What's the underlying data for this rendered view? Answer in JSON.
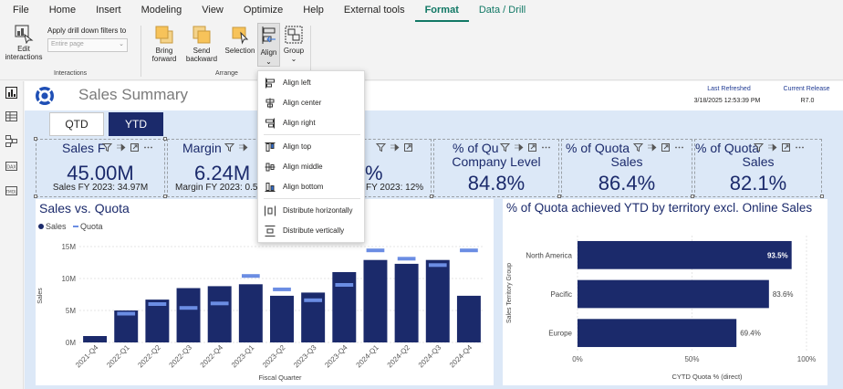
{
  "menu": {
    "items": [
      {
        "label": "File"
      },
      {
        "label": "Home"
      },
      {
        "label": "Insert"
      },
      {
        "label": "Modeling"
      },
      {
        "label": "View"
      },
      {
        "label": "Optimize"
      },
      {
        "label": "Help"
      },
      {
        "label": "External tools"
      },
      {
        "label": "Format"
      },
      {
        "label": "Data / Drill"
      }
    ],
    "active": "Format",
    "accent_color": "#117865"
  },
  "ribbon": {
    "edit_interactions": {
      "line1": "Edit",
      "line2": "interactions"
    },
    "drill_filters_label": "Apply drill down filters to",
    "drill_filters_placeholder": "Entire page",
    "interactions_group": "Interactions",
    "bring_forward": {
      "line1": "Bring",
      "line2": "forward"
    },
    "send_backward": {
      "line1": "Send",
      "line2": "backward"
    },
    "selection": "Selection",
    "align": "Align",
    "group": "Group",
    "arrange_group": "Arrange"
  },
  "align_menu": {
    "items": [
      {
        "label": "Align left",
        "icon": "align-left-icon"
      },
      {
        "label": "Align center",
        "icon": "align-center-icon"
      },
      {
        "label": "Align right",
        "icon": "align-right-icon"
      },
      {
        "label": "Align top",
        "icon": "align-top-icon"
      },
      {
        "label": "Align middle",
        "icon": "align-middle-icon"
      },
      {
        "label": "Align bottom",
        "icon": "align-bottom-icon"
      },
      {
        "label": "Distribute horizontally",
        "icon": "distribute-horizontal-icon"
      },
      {
        "label": "Distribute vertically",
        "icon": "distribute-vertical-icon"
      }
    ]
  },
  "rail": {
    "icons": [
      "report-view-icon",
      "table-view-icon",
      "model-view-icon",
      "dax-query-icon",
      "tmdl-view-icon"
    ]
  },
  "report": {
    "title": "Sales Summary",
    "last_refreshed_label": "Last Refreshed",
    "last_refreshed_value": "3/18/2025 12:53:39 PM",
    "current_release_label": "Current Release",
    "current_release_value": "R7.0",
    "toggle": {
      "qtd": "QTD",
      "ytd": "YTD",
      "selected": "YTD"
    },
    "navy": "#1b2a6b",
    "light_bar": "#6b8de3"
  },
  "cards": [
    {
      "title": "Sales F",
      "value": "45.00M",
      "sub": "Sales FY 2023: 34.97M"
    },
    {
      "title": "Margin",
      "value": "6.24M",
      "sub": "Margin FY 2023: 0.5"
    },
    {
      "title": "",
      "value": "%",
      "sub": "FY 2023: 12%"
    },
    {
      "title": "% of Qu",
      "title2": "Company Level",
      "value": "84.8%"
    },
    {
      "title": "% of Quota",
      "title2": "Sales",
      "value": "86.4%"
    },
    {
      "title": "% of Quota",
      "title2": "Sales",
      "value": "82.1%"
    }
  ],
  "chart_data": [
    {
      "type": "bar",
      "title": "Sales vs. Quota",
      "xlabel": "Fiscal Quarter",
      "ylabel": "Sales",
      "categories": [
        "2021-Q4",
        "2022-Q1",
        "2022-Q2",
        "2022-Q3",
        "2022-Q4",
        "2023-Q1",
        "2023-Q2",
        "2023-Q3",
        "2023-Q4",
        "2024-Q1",
        "2024-Q2",
        "2024-Q3",
        "2024-Q4"
      ],
      "series": [
        {
          "name": "Sales",
          "values": [
            1.0,
            5.0,
            6.7,
            8.5,
            8.8,
            9.1,
            7.3,
            7.8,
            11.0,
            12.9,
            12.3,
            12.9,
            7.3
          ]
        },
        {
          "name": "Quota",
          "values": [
            null,
            4.5,
            6.0,
            5.4,
            6.1,
            10.4,
            8.3,
            6.6,
            9.0,
            14.4,
            13.1,
            12.1,
            14.4
          ]
        }
      ],
      "yticks": [
        "0M",
        "5M",
        "10M",
        "15M"
      ],
      "ylim": [
        0,
        15
      ],
      "legend": "top-left",
      "colors": {
        "Sales": "#1b2a6b",
        "Quota": "#6b8de3"
      }
    },
    {
      "type": "bar",
      "orientation": "horizontal",
      "title": "% of Quota achieved YTD by territory excl. Online Sales",
      "xlabel": "CYTD Quota % (direct)",
      "ylabel": "Sales Territory Group",
      "categories": [
        "North America",
        "Pacific",
        "Europe"
      ],
      "values": [
        93.5,
        83.6,
        69.4
      ],
      "labels": [
        "93.5%",
        "83.6%",
        "69.4%"
      ],
      "xticks": [
        "0%",
        "50%",
        "100%"
      ],
      "xlim": [
        0,
        100
      ],
      "color": "#1b2a6b"
    }
  ]
}
